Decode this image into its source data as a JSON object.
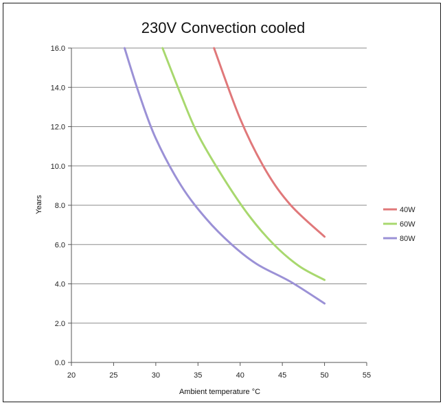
{
  "chart_data": {
    "type": "line",
    "title": "230V Convection cooled",
    "xlabel": "Ambient temperature °C",
    "ylabel": "Years",
    "xlim": [
      20,
      55
    ],
    "ylim": [
      0,
      16
    ],
    "x_ticks": [
      "20",
      "25",
      "30",
      "35",
      "40",
      "45",
      "50",
      "55"
    ],
    "y_ticks": [
      "0.0",
      "2.0",
      "4.0",
      "6.0",
      "8.0",
      "10.0",
      "12.0",
      "14.0",
      "16.0"
    ],
    "grid": "horizontal",
    "legend_position": "right",
    "series": [
      {
        "name": "40W",
        "color": "#e0787a",
        "x": [
          36.9,
          40,
          43,
          46,
          50
        ],
        "y": [
          16.0,
          12.4,
          9.8,
          8.0,
          6.4
        ]
      },
      {
        "name": "60W",
        "color": "#a8d86e",
        "x": [
          30.8,
          33,
          35,
          38,
          41,
          44,
          47,
          50
        ],
        "y": [
          16.0,
          13.6,
          11.6,
          9.4,
          7.5,
          6.0,
          4.9,
          4.2
        ]
      },
      {
        "name": "80W",
        "color": "#9b91d6",
        "x": [
          26.3,
          28,
          30,
          33,
          36,
          39,
          42,
          46,
          50
        ],
        "y": [
          16.0,
          13.7,
          11.4,
          9.0,
          7.3,
          6.0,
          5.0,
          4.1,
          3.0
        ]
      }
    ]
  }
}
